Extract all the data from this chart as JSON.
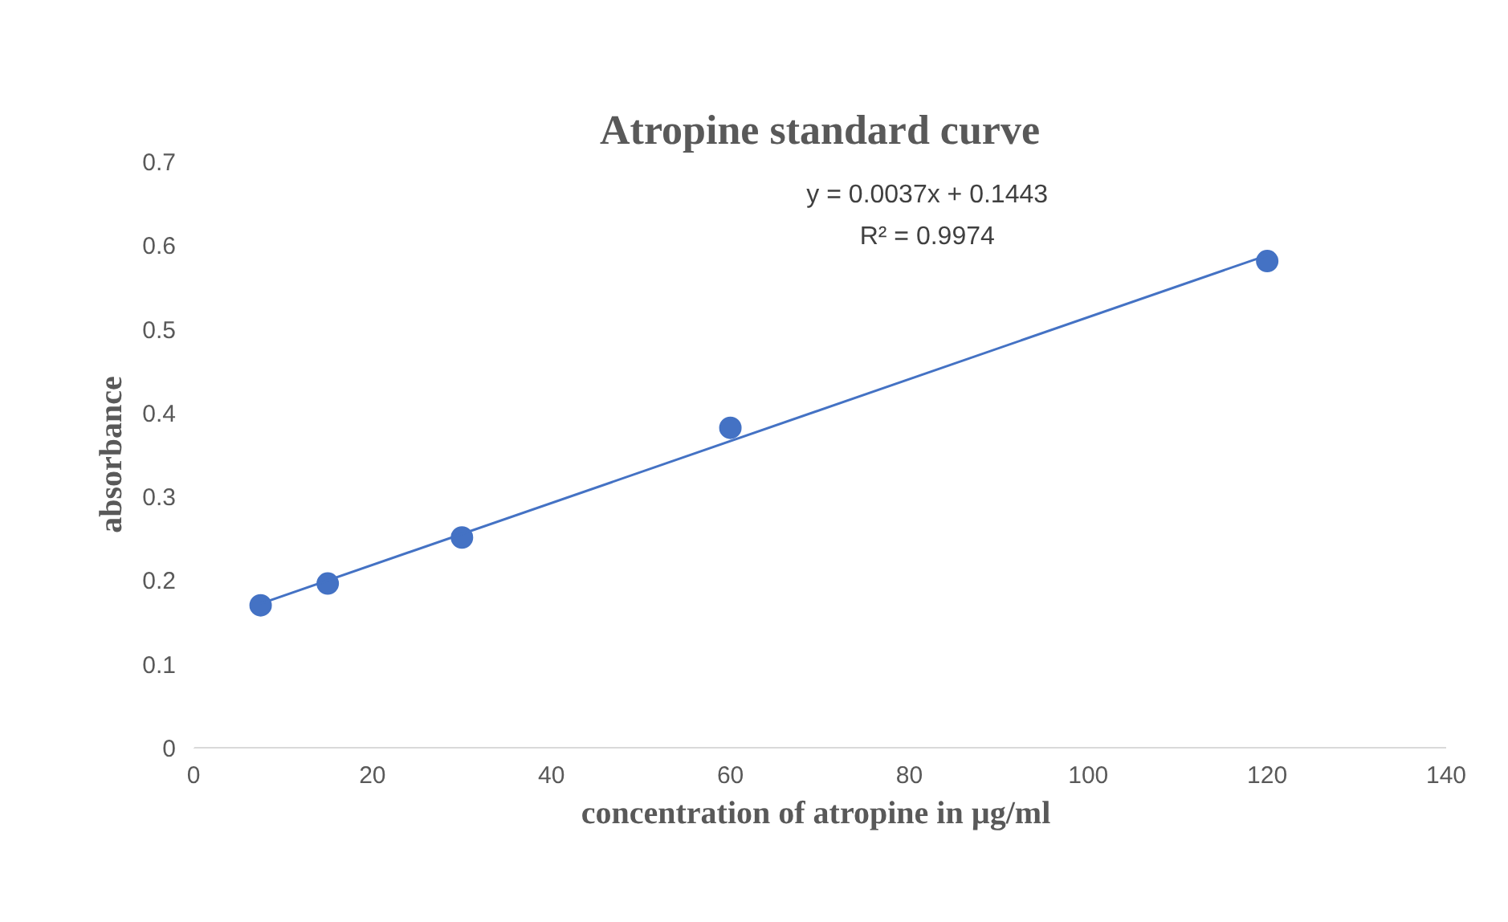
{
  "chart_data": {
    "type": "scatter",
    "title": "Atropine standard curve",
    "xlabel": "concentration of  atropine in µg/ml",
    "ylabel": "absorbance",
    "x": [
      7.5,
      15,
      30,
      60,
      120
    ],
    "series": [
      {
        "color": "#4472c4",
        "marker": "circle",
        "values": [
          0.17,
          0.196,
          0.251,
          0.382,
          0.581
        ]
      },
      {
        "type": "line",
        "color": "#4472c4",
        "marker": "none",
        "x": [
          7.5,
          120
        ],
        "values": [
          0.172,
          0.588
        ]
      }
    ],
    "xlim": [
      0,
      140
    ],
    "xticks": [
      0,
      20,
      40,
      60,
      80,
      100,
      120,
      140
    ],
    "ylim": [
      0,
      0.7
    ],
    "yticks": [
      0,
      0.1,
      0.2,
      0.3,
      0.4,
      0.5,
      0.6,
      0.7
    ],
    "annotations": [
      "y = 0.0037x + 0.1443",
      "R² = 0.9974"
    ],
    "line_style": "solid",
    "grid": false
  }
}
